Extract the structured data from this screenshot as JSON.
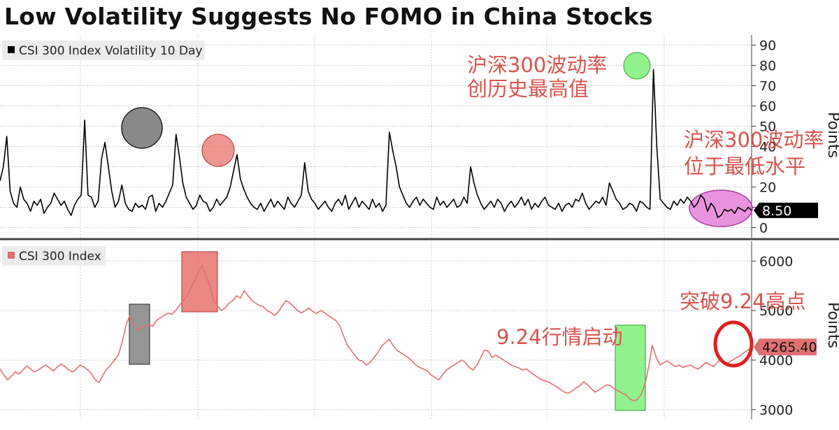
{
  "page_title": "Low Volatility Suggests No FOMO in China Stocks",
  "colors": {
    "volatility_line": "#000000",
    "index_line": "#e07070",
    "annotation_text": "#d9534f",
    "grid": "#cccccc",
    "panel_divider": "#444444",
    "legend_bg": "#ececec",
    "gray_highlight": "#8a8a8a",
    "red_highlight": "#e8736b",
    "green_highlight": "#7ef07a",
    "pink_highlight": "#e580d8",
    "vol_label_bg": "#000000",
    "index_label_bg": "#e07070"
  },
  "chart_data": [
    {
      "type": "line",
      "panel": "top",
      "series": [
        {
          "name": "CSI 300 Index Volatility 10 Day",
          "color": "#000000",
          "values": [
            23,
            30,
            45,
            18,
            12,
            10,
            20,
            14,
            12,
            8,
            13,
            11,
            14,
            7,
            10,
            12,
            17,
            14,
            11,
            13,
            9,
            6,
            11,
            14,
            16,
            53,
            16,
            15,
            10,
            13,
            34,
            42,
            30,
            18,
            10,
            13,
            21,
            12,
            9,
            8,
            12,
            10,
            11,
            9,
            15,
            16,
            8,
            12,
            10,
            13,
            17,
            21,
            46,
            35,
            22,
            15,
            12,
            9,
            11,
            16,
            13,
            12,
            8,
            10,
            14,
            11,
            13,
            15,
            20,
            28,
            36,
            24,
            19,
            15,
            12,
            10,
            9,
            12,
            8,
            11,
            14,
            10,
            13,
            11,
            9,
            15,
            12,
            10,
            13,
            16,
            32,
            18,
            14,
            12,
            9,
            11,
            13,
            10,
            8,
            12,
            14,
            11,
            16,
            9,
            12,
            15,
            10,
            13,
            11,
            9,
            14,
            10,
            12,
            8,
            11,
            47,
            38,
            30,
            20,
            16,
            12,
            10,
            13,
            15,
            11,
            14,
            12,
            10,
            9,
            15,
            11,
            13,
            10,
            12,
            14,
            10,
            11,
            15,
            12,
            30,
            22,
            16,
            12,
            9,
            11,
            13,
            10,
            14,
            12,
            8,
            11,
            13,
            10,
            12,
            15,
            11,
            14,
            9,
            12,
            10,
            13,
            15,
            11,
            10,
            9,
            12,
            8,
            11,
            12,
            10,
            14,
            13,
            17,
            12,
            9,
            11,
            13,
            12,
            15,
            11,
            22,
            18,
            14,
            12,
            9,
            10,
            12,
            11,
            8,
            13,
            12,
            10,
            9,
            78,
            40,
            14,
            12,
            10,
            9,
            13,
            11,
            14,
            12,
            15,
            13,
            10,
            12,
            16,
            14,
            8,
            12,
            10,
            5,
            6,
            9,
            8,
            9,
            7,
            10,
            9,
            8,
            10,
            8.5
          ]
        }
      ],
      "xlim_points": 238,
      "ylim": [
        -5,
        95
      ],
      "y_ticks": [
        0,
        10,
        20,
        30,
        40,
        50,
        60,
        70,
        80,
        90
      ],
      "y_tick_labels": [
        "0",
        "",
        "20",
        "",
        "40",
        "50",
        "60",
        "70",
        "80",
        "90"
      ],
      "ylabel": "Points",
      "last_value_label": "8.50",
      "legend": "CSI 300 Index Volatility 10 Day",
      "grid": true,
      "annotations": [
        {
          "text": "沪深300波动率",
          "position": "top-right-upper"
        },
        {
          "text": "创历史最高值",
          "position": "top-right-upper"
        },
        {
          "text": "沪深300波动率",
          "position": "right"
        },
        {
          "text": "位于最低水平",
          "position": "right"
        }
      ]
    },
    {
      "type": "line",
      "panel": "bottom",
      "series": [
        {
          "name": "CSI 300 Index",
          "color": "#e07070",
          "values": [
            3820,
            3700,
            3600,
            3680,
            3760,
            3720,
            3800,
            3880,
            3820,
            3760,
            3800,
            3850,
            3900,
            3840,
            3780,
            3860,
            3920,
            3870,
            3800,
            3760,
            3820,
            3900,
            3860,
            3800,
            3720,
            3600,
            3550,
            3700,
            3820,
            3900,
            4000,
            4100,
            4350,
            4700,
            4900,
            4780,
            4600,
            4650,
            4700,
            4720,
            4680,
            4800,
            4850,
            4900,
            4950,
            4920,
            5000,
            5100,
            5200,
            5300,
            5450,
            5600,
            5800,
            5900,
            5700,
            5500,
            5200,
            5100,
            5000,
            5050,
            5150,
            5200,
            5300,
            5250,
            5400,
            5300,
            5200,
            5150,
            5100,
            5080,
            5000,
            4960,
            4900,
            4980,
            5100,
            5200,
            5150,
            5080,
            5000,
            4950,
            5000,
            5050,
            4980,
            4940,
            5000,
            4960,
            4900,
            4850,
            4800,
            4700,
            4500,
            4300,
            4200,
            4100,
            4000,
            3980,
            3900,
            3950,
            4050,
            4150,
            4280,
            4350,
            4420,
            4300,
            4200,
            4150,
            4100,
            4050,
            3980,
            3900,
            3850,
            3820,
            3780,
            3700,
            3650,
            3600,
            3700,
            3800,
            3850,
            3900,
            3950,
            4000,
            3950,
            3850,
            3800,
            3900,
            4050,
            4200,
            4180,
            4050,
            4100,
            4050,
            4000,
            3950,
            3900,
            3870,
            3840,
            3800,
            3820,
            3760,
            3700,
            3650,
            3600,
            3580,
            3550,
            3500,
            3460,
            3400,
            3350,
            3330,
            3380,
            3440,
            3480,
            3560,
            3500,
            3420,
            3350,
            3400,
            3450,
            3500,
            3480,
            3420,
            3380,
            3340,
            3300,
            3220,
            3180,
            3200,
            3300,
            3500,
            3860,
            4300,
            4050,
            3900,
            3950,
            3980,
            3920,
            3870,
            3900,
            3850,
            3880,
            3900,
            3850,
            3820,
            3880,
            3950,
            3910,
            3870,
            3950,
            4050,
            3920,
            3950,
            4000,
            4050,
            4080,
            4150,
            4200,
            4265
          ]
        }
      ],
      "xlim_points": 200,
      "ylim": [
        2800,
        6400
      ],
      "y_ticks": [
        3000,
        4000,
        5000,
        6000
      ],
      "y_tick_labels": [
        "3000",
        "4000",
        "5000",
        "6000"
      ],
      "ylabel": "Points",
      "last_value_label": "4265.40",
      "legend": "CSI 300 Index",
      "grid": true,
      "annotations": [
        {
          "text": "突破9.24高点",
          "position": "right"
        },
        {
          "text": "9.24行情启动",
          "position": "right"
        }
      ]
    }
  ]
}
